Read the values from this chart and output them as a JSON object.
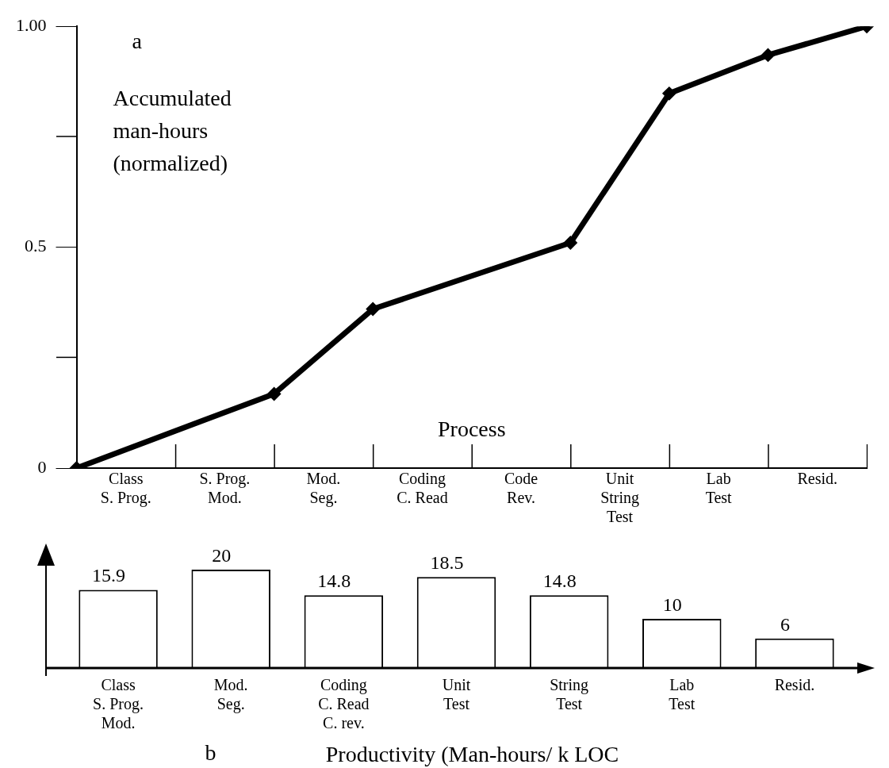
{
  "chart_data": [
    {
      "type": "line",
      "annotations": [
        "a"
      ],
      "ylabel": "Accumulated man-hours (normalized)",
      "xlabel": "Process",
      "categories": [
        null,
        "Class\nS. Prog.",
        null,
        "S. Prog.\nMod.",
        null,
        "Mod.\nSeg.",
        null,
        "Coding\nC. Read",
        null,
        "Code\nRev.",
        null,
        "Unit\nString\nTest",
        null,
        "Lab\nTest",
        null,
        "Resid.",
        null
      ],
      "series": [
        {
          "color": "#000000",
          "values": [
            0,
            null,
            null,
            null,
            0.168,
            null,
            0.36,
            null,
            null,
            null,
            0.51,
            null,
            0.848,
            null,
            0.935,
            null,
            1.0
          ]
        }
      ],
      "marker": "diamond",
      "line_style": "solid",
      "ylim": [
        0,
        1.0
      ],
      "yticks": [
        0,
        0.5,
        {
          "value": 1.0,
          "label": "1.00"
        }
      ]
    },
    {
      "type": "bar",
      "annotations": [
        "b"
      ],
      "xlabel": "Productivity (Man-hours/ k LOC",
      "categories": [
        "Class\nS. Prog.\nMod.",
        "Mod.\nSeg.",
        "Coding\nC. Read\nC. rev.",
        "Unit\nTest",
        "String\nTest",
        "Lab\nTest",
        "Resid."
      ],
      "values": [
        15.9,
        20,
        14.8,
        18.5,
        14.8,
        10,
        6
      ],
      "colors": [
        "#ffffff",
        "#ffffff",
        "#ffffff",
        "#ffffff",
        "#ffffff",
        "#ffffff",
        "#ffffff"
      ],
      "data_labels": true,
      "tick_labels": "x"
    }
  ]
}
